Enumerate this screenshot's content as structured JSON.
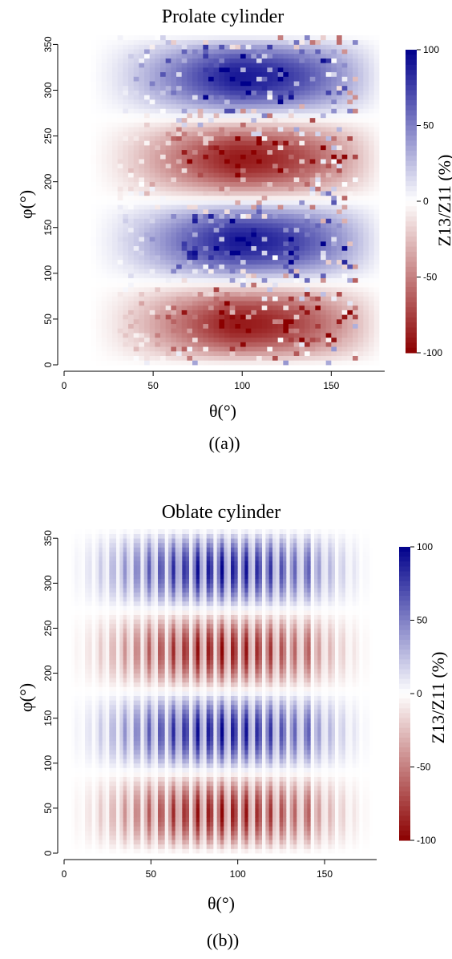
{
  "chart_data": [
    {
      "type": "heatmap",
      "title": "Prolate cylinder",
      "caption": "((a))",
      "xlabel": "θ(°)",
      "ylabel": "φ(°)",
      "colorbar_label": "Z13/Z11 (%)",
      "xlim": [
        0,
        180
      ],
      "ylim": [
        0,
        360
      ],
      "x_ticks": [
        0,
        50,
        100,
        150
      ],
      "y_ticks": [
        0,
        50,
        100,
        150,
        200,
        250,
        300,
        350
      ],
      "colorbar_range": [
        -100,
        100
      ],
      "colorbar_ticks": [
        -100,
        -50,
        0,
        50,
        100
      ],
      "colormap": [
        "#8b0000",
        "#ffffff",
        "#00008b"
      ],
      "grid": false,
      "pattern": "sin(2φ) modulated lobes, speckled, strongest near θ≈90–130°"
    },
    {
      "type": "heatmap",
      "title": "Oblate cylinder",
      "caption": "((b))",
      "xlabel": "θ(°)",
      "ylabel": "φ(°)",
      "colorbar_label": "Z13/Z11 (%)",
      "xlim": [
        0,
        180
      ],
      "ylim": [
        0,
        360
      ],
      "x_ticks": [
        0,
        50,
        100,
        150
      ],
      "y_ticks": [
        0,
        50,
        100,
        150,
        200,
        250,
        300,
        350
      ],
      "colorbar_range": [
        -100,
        100
      ],
      "colorbar_ticks": [
        -100,
        -50,
        0,
        50,
        100
      ],
      "colormap": [
        "#8b0000",
        "#ffffff",
        "#00008b"
      ],
      "grid": false,
      "pattern": "sin(2φ) modulated lobes with vertical θ-banding, strongest near θ≈90°"
    }
  ]
}
